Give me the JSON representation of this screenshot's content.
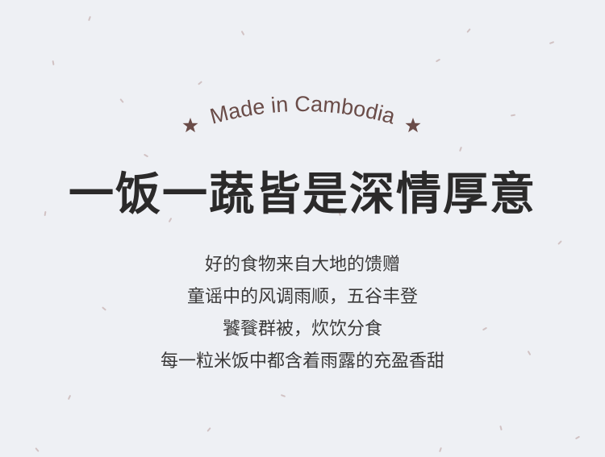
{
  "tagline": "Made in Cambodia",
  "headline": "一饭一蔬皆是深情厚意",
  "lines": [
    "好的食物来自大地的馈赠",
    "童谣中的风调雨顺，五谷丰登",
    "饕餮群被，炊饮分食",
    "每一粒米饭中都含着雨露的充盈香甜"
  ],
  "colors": {
    "accent": "#6a4c48",
    "text": "#2b2a2a",
    "background": "#eef0f4"
  }
}
